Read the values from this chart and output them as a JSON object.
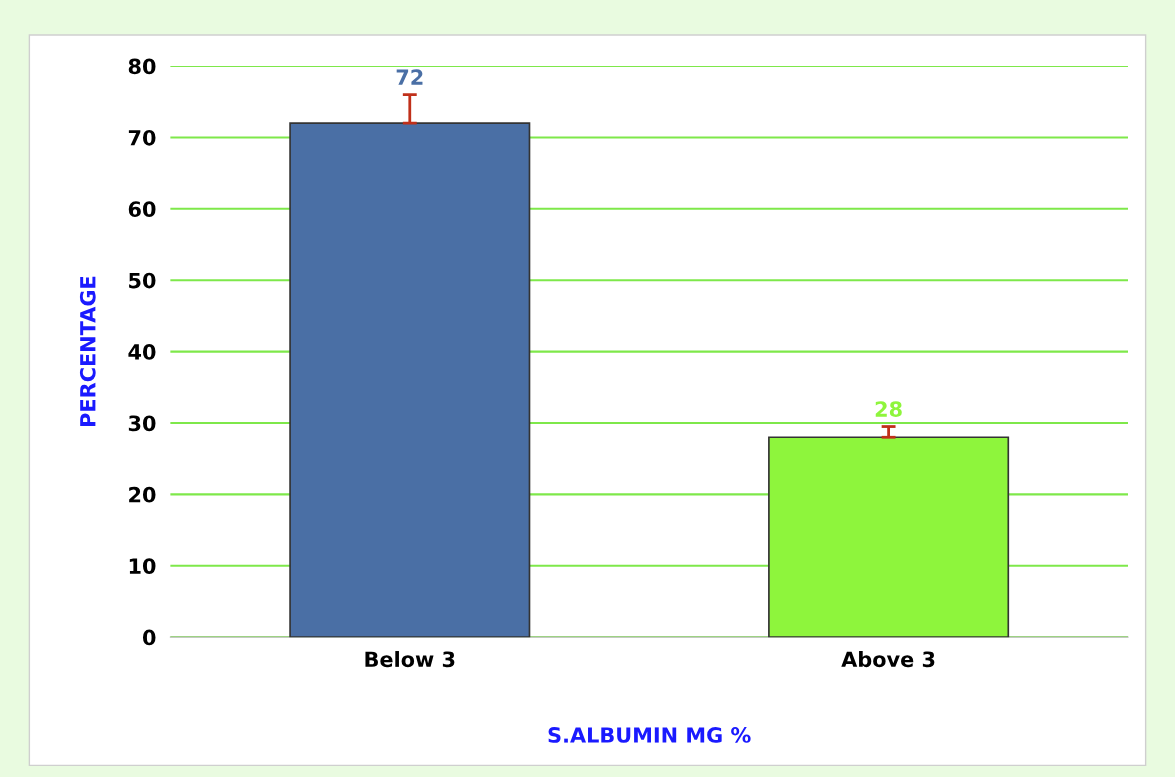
{
  "chart_data": {
    "type": "bar",
    "xlabel": "S.ALBUMIN MG %",
    "ylabel": "PERCENTAGE",
    "categories": [
      "Below 3",
      "Above 3"
    ],
    "values": [
      72,
      28
    ],
    "colors": [
      "#4a6fa5",
      "#8ef53c"
    ],
    "errors": [
      [
        72,
        76
      ],
      [
        28,
        29.5
      ]
    ],
    "ylim": [
      0,
      80
    ],
    "yticks": [
      0,
      10,
      20,
      30,
      40,
      50,
      60,
      70,
      80
    ],
    "grid": "y",
    "data_labels": true
  }
}
